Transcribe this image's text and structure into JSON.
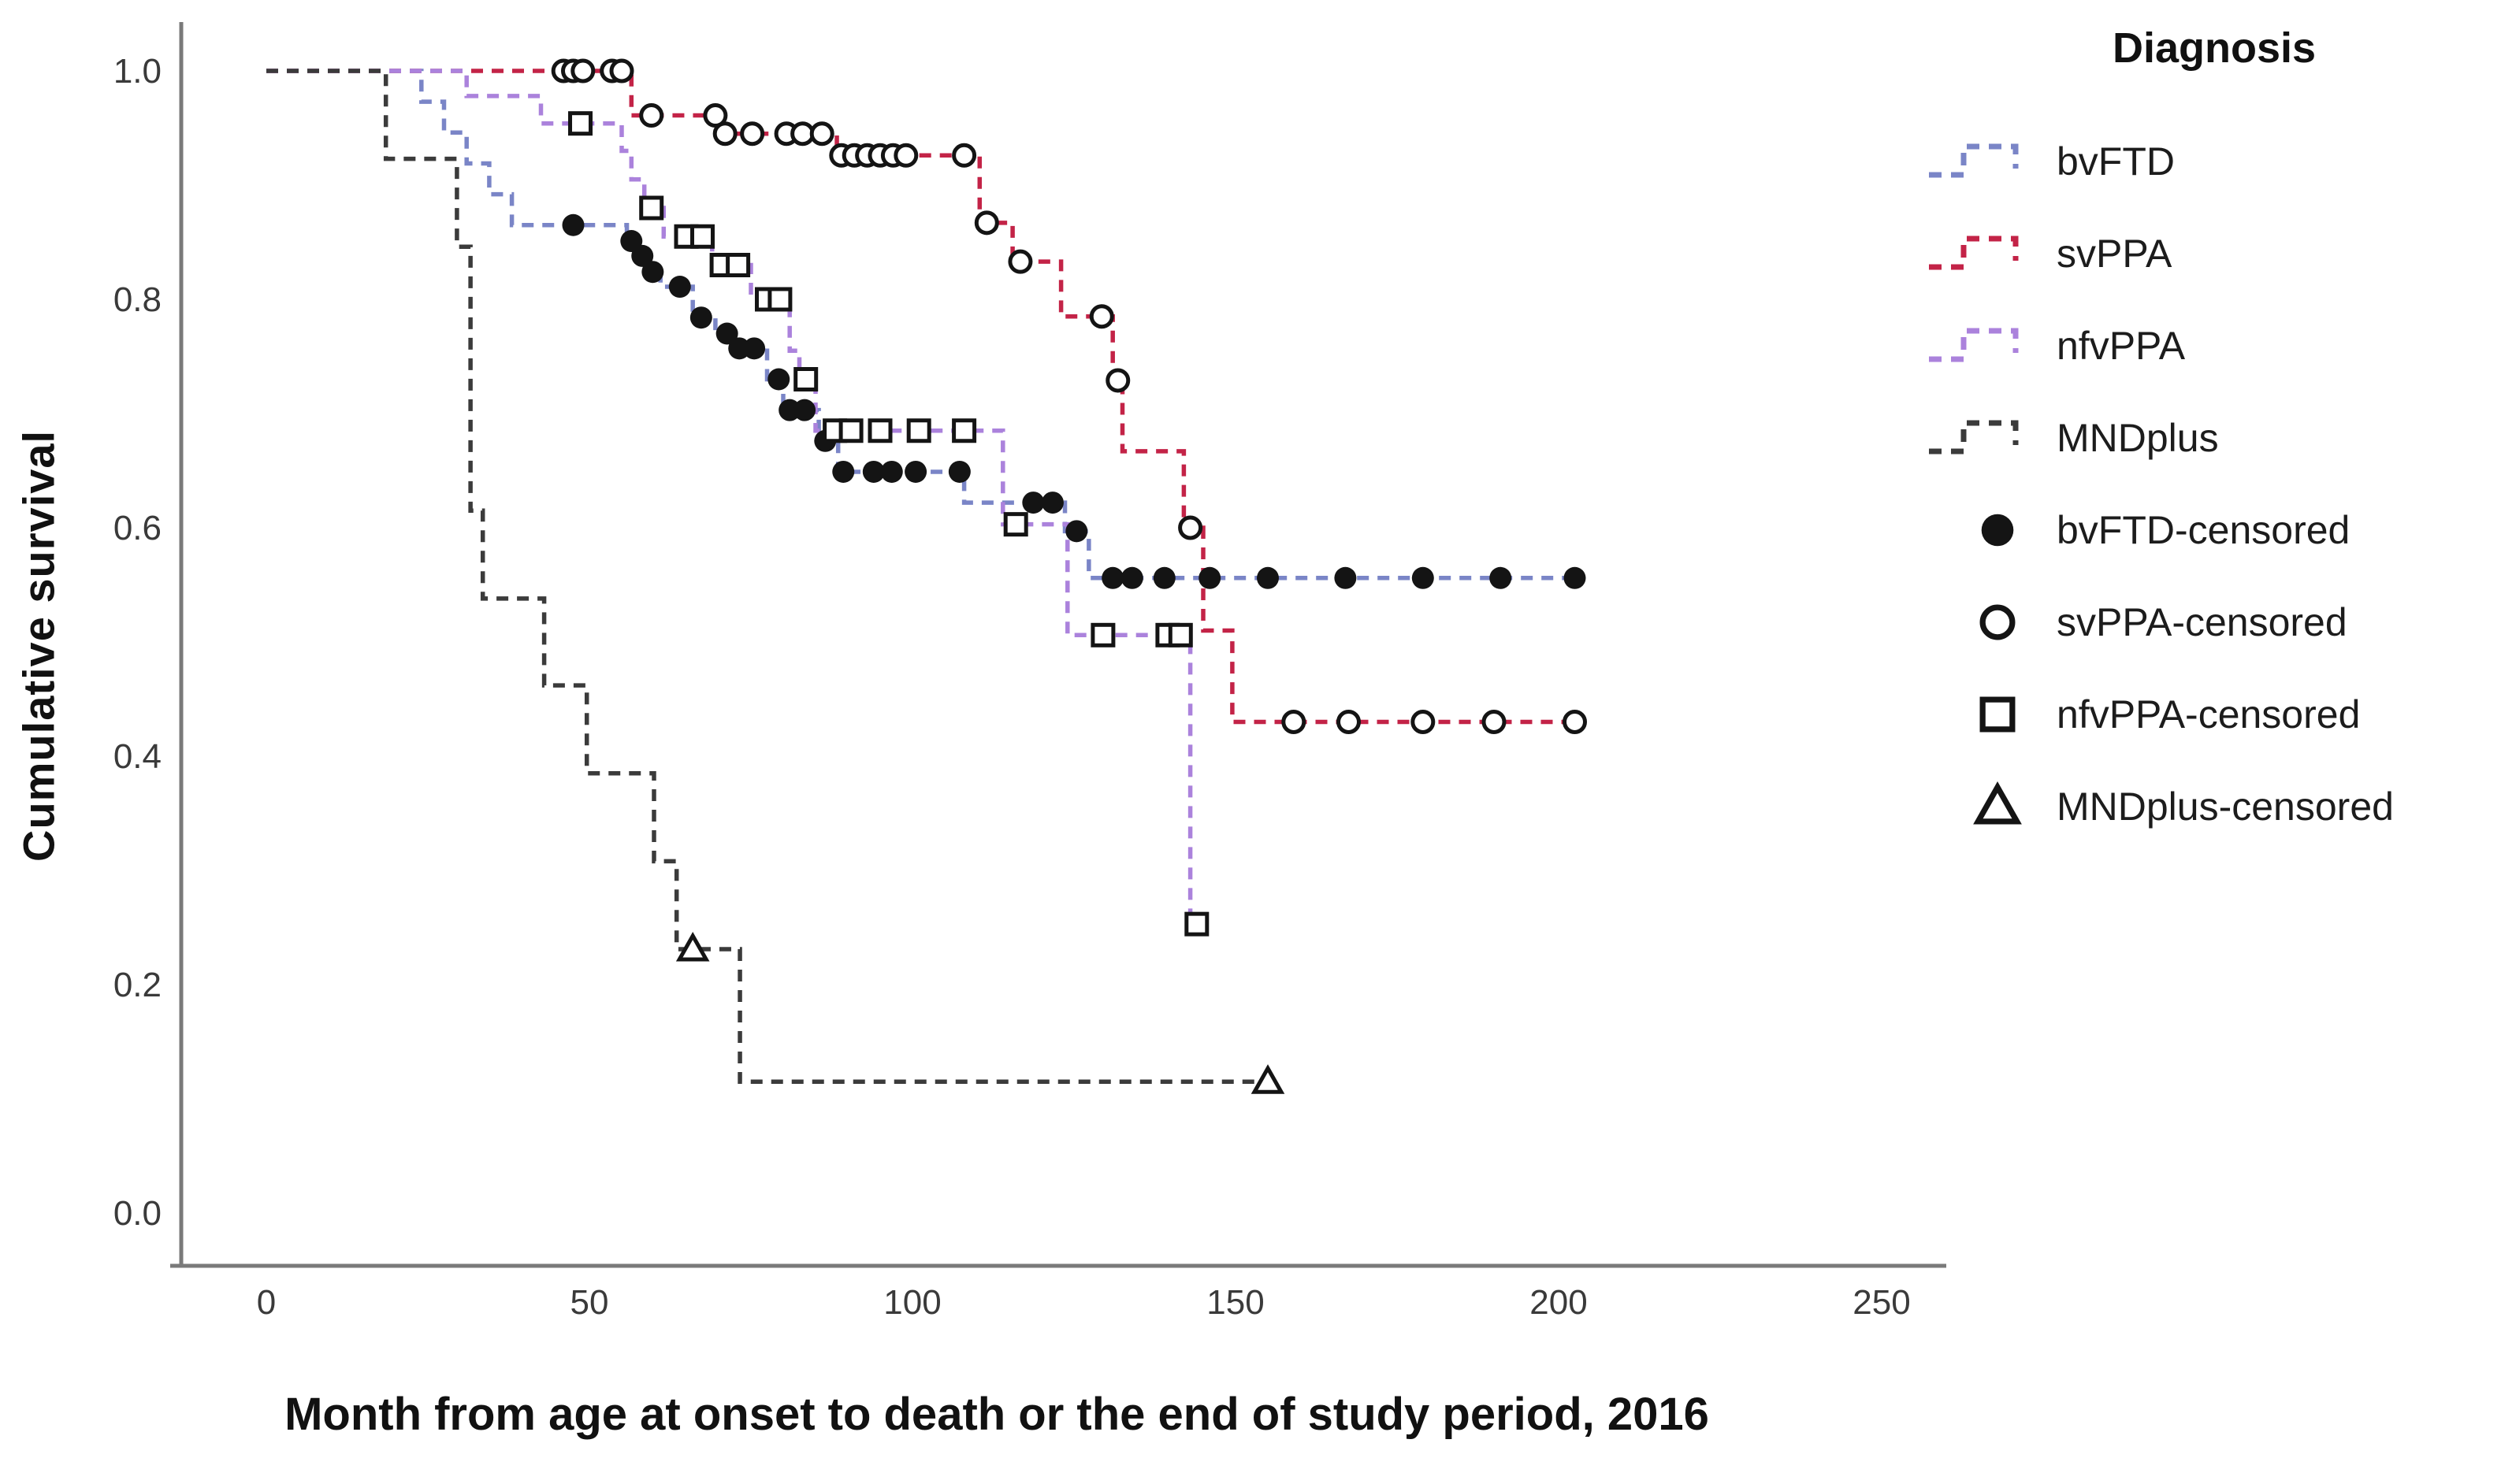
{
  "figure": {
    "ylabel": "Cumulative survival",
    "xlabel": "Month from age at onset to death or the end of study period, 2016"
  },
  "legend": {
    "title": "Diagnosis",
    "line_entries": [
      {
        "label": "bvFTD",
        "color": "#7a85c7"
      },
      {
        "label": "svPPA",
        "color": "#c32347"
      },
      {
        "label": "nfvPPA",
        "color": "#ab82dc"
      },
      {
        "label": "MNDplus",
        "color": "#3b3b3b"
      }
    ],
    "marker_entries": [
      {
        "label": "bvFTD-censored",
        "marker": "filled-circle"
      },
      {
        "label": "svPPA-censored",
        "marker": "open-circle"
      },
      {
        "label": "nfvPPA-censored",
        "marker": "open-square"
      },
      {
        "label": "MNDplus-censored",
        "marker": "open-triangle"
      }
    ]
  },
  "chart_data": {
    "type": "line",
    "subtype": "kaplan-meier-step",
    "title": "",
    "xlabel": "Month from age at onset to death or the end of study period, 2016",
    "ylabel": "Cumulative survival",
    "x_ticks": [
      0,
      50,
      100,
      150,
      200,
      250
    ],
    "y_tick_labels": [
      "0.0",
      "0.2",
      "0.4",
      "0.6",
      "0.8",
      "1.0"
    ],
    "xlim": [
      -13,
      260
    ],
    "ylim": [
      -0.05,
      1.04
    ],
    "grid": false,
    "legend_position": "top-right",
    "axis_color": "#7a7a7a",
    "marker_color": "#141414",
    "series": [
      {
        "name": "bvFTD",
        "color": "#7a85c7",
        "marker": "filled-circle",
        "end_month": 203,
        "steps": [
          [
            0,
            1.0
          ],
          [
            24,
            0.973
          ],
          [
            27.5,
            0.946
          ],
          [
            31,
            0.919
          ],
          [
            34.5,
            0.892
          ],
          [
            38,
            0.865
          ],
          [
            55.8,
            0.851
          ],
          [
            57.5,
            0.838
          ],
          [
            59,
            0.824
          ],
          [
            61,
            0.811
          ],
          [
            66,
            0.784
          ],
          [
            69.5,
            0.77
          ],
          [
            72.5,
            0.757
          ],
          [
            77.5,
            0.73
          ],
          [
            80,
            0.703
          ],
          [
            85.5,
            0.676
          ],
          [
            88.5,
            0.649
          ],
          [
            108,
            0.622
          ],
          [
            123.6,
            0.597
          ],
          [
            127.3,
            0.556
          ]
        ],
        "censored": [
          [
            47.5,
            0.865
          ],
          [
            56.5,
            0.851
          ],
          [
            58.2,
            0.838
          ],
          [
            59.8,
            0.824
          ],
          [
            64,
            0.811
          ],
          [
            67.3,
            0.784
          ],
          [
            71.3,
            0.77
          ],
          [
            73.2,
            0.757
          ],
          [
            75.5,
            0.757
          ],
          [
            79.3,
            0.73
          ],
          [
            81,
            0.703
          ],
          [
            83.3,
            0.703
          ],
          [
            86.5,
            0.676
          ],
          [
            89.3,
            0.649
          ],
          [
            94,
            0.649
          ],
          [
            96.8,
            0.649
          ],
          [
            100.5,
            0.649
          ],
          [
            107.3,
            0.649
          ],
          [
            118.7,
            0.622
          ],
          [
            121.7,
            0.622
          ],
          [
            125.4,
            0.597
          ],
          [
            131,
            0.556
          ],
          [
            134,
            0.556
          ],
          [
            139,
            0.556
          ],
          [
            146,
            0.556
          ],
          [
            155,
            0.556
          ],
          [
            167,
            0.556
          ],
          [
            179,
            0.556
          ],
          [
            191,
            0.556
          ],
          [
            202.5,
            0.556
          ]
        ]
      },
      {
        "name": "svPPA",
        "color": "#c32347",
        "marker": "open-circle",
        "end_month": 203,
        "steps": [
          [
            0,
            1.0
          ],
          [
            56.5,
            0.961
          ],
          [
            70.4,
            0.945
          ],
          [
            88.3,
            0.926
          ],
          [
            110.4,
            0.867
          ],
          [
            115.5,
            0.833
          ],
          [
            123,
            0.785
          ],
          [
            131,
            0.729
          ],
          [
            132.5,
            0.667
          ],
          [
            142,
            0.6
          ],
          [
            145,
            0.51
          ],
          [
            149.5,
            0.43
          ]
        ],
        "censored": [
          [
            46,
            1.0
          ],
          [
            47.5,
            1.0
          ],
          [
            49,
            1.0
          ],
          [
            53.5,
            1.0
          ],
          [
            55,
            1.0
          ],
          [
            59.6,
            0.961
          ],
          [
            69.5,
            0.961
          ],
          [
            71,
            0.945
          ],
          [
            75.2,
            0.945
          ],
          [
            80.5,
            0.945
          ],
          [
            83,
            0.945
          ],
          [
            86,
            0.945
          ],
          [
            89,
            0.926
          ],
          [
            91,
            0.926
          ],
          [
            93,
            0.926
          ],
          [
            95,
            0.926
          ],
          [
            97,
            0.926
          ],
          [
            99,
            0.926
          ],
          [
            108,
            0.926
          ],
          [
            111.5,
            0.867
          ],
          [
            116.7,
            0.833
          ],
          [
            129.3,
            0.785
          ],
          [
            131.8,
            0.729
          ],
          [
            143,
            0.6
          ],
          [
            159,
            0.43
          ],
          [
            167.5,
            0.43
          ],
          [
            179,
            0.43
          ],
          [
            190,
            0.43
          ],
          [
            202.5,
            0.43
          ]
        ]
      },
      {
        "name": "nfvPPA",
        "color": "#ab82dc",
        "marker": "open-square",
        "end_month": 146,
        "steps": [
          [
            0,
            1.0
          ],
          [
            31,
            0.978
          ],
          [
            42.5,
            0.954
          ],
          [
            55,
            0.93
          ],
          [
            56.5,
            0.905
          ],
          [
            58.5,
            0.88
          ],
          [
            61.5,
            0.855
          ],
          [
            69,
            0.83
          ],
          [
            75,
            0.8
          ],
          [
            81,
            0.755
          ],
          [
            82.5,
            0.73
          ],
          [
            85,
            0.685
          ],
          [
            114,
            0.603
          ],
          [
            124,
            0.506
          ],
          [
            143,
            0.253
          ]
        ],
        "censored": [
          [
            48.6,
            0.954
          ],
          [
            59.6,
            0.88
          ],
          [
            65,
            0.855
          ],
          [
            67.5,
            0.855
          ],
          [
            70.5,
            0.83
          ],
          [
            73,
            0.83
          ],
          [
            77.5,
            0.8
          ],
          [
            79.5,
            0.8
          ],
          [
            83.5,
            0.73
          ],
          [
            88,
            0.685
          ],
          [
            90.5,
            0.685
          ],
          [
            95,
            0.685
          ],
          [
            101,
            0.685
          ],
          [
            108,
            0.685
          ],
          [
            116,
            0.603
          ],
          [
            129.5,
            0.506
          ],
          [
            139.5,
            0.506
          ],
          [
            141.5,
            0.506
          ],
          [
            144,
            0.253
          ]
        ]
      },
      {
        "name": "MNDplus",
        "color": "#3b3b3b",
        "marker": "open-triangle",
        "end_month": 155.1,
        "steps": [
          [
            0,
            1.0
          ],
          [
            18.5,
            0.923
          ],
          [
            29.5,
            0.846
          ],
          [
            31.6,
            0.615
          ],
          [
            33.5,
            0.538
          ],
          [
            43,
            0.462
          ],
          [
            49.6,
            0.385
          ],
          [
            60,
            0.308
          ],
          [
            63.5,
            0.231
          ],
          [
            73.3,
            0.115
          ]
        ],
        "censored": [
          [
            66,
            0.231
          ],
          [
            155,
            0.115
          ]
        ]
      }
    ]
  }
}
